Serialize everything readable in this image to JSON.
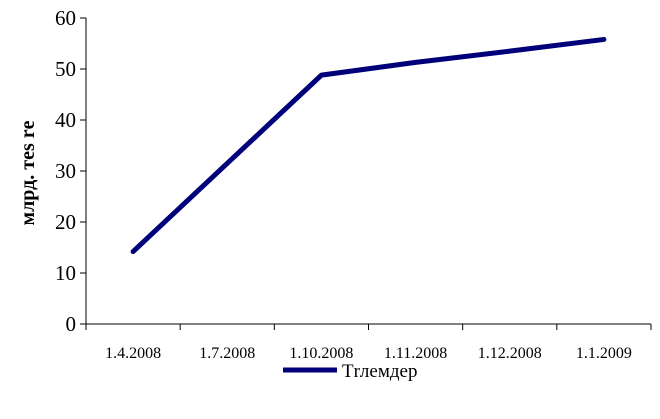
{
  "chart_data": {
    "type": "line",
    "categories": [
      "1.4.2008",
      "1.7.2008",
      "1.10.2008",
      "1.11.2008",
      "1.12.2008",
      "1.1.2009"
    ],
    "series": [
      {
        "name": "Тrлемдер",
        "values": [
          14.2,
          null,
          48.8,
          51.3,
          53.5,
          55.8
        ]
      }
    ],
    "ylabel": "млрд. тes rе",
    "xlabel": "",
    "ylim": [
      0,
      60
    ],
    "yticks": [
      0,
      10,
      20,
      30,
      40,
      50,
      60
    ],
    "grid": false,
    "legend_position": "bottom",
    "colors": {
      "line": "#00007a",
      "axis": "#000000"
    }
  }
}
